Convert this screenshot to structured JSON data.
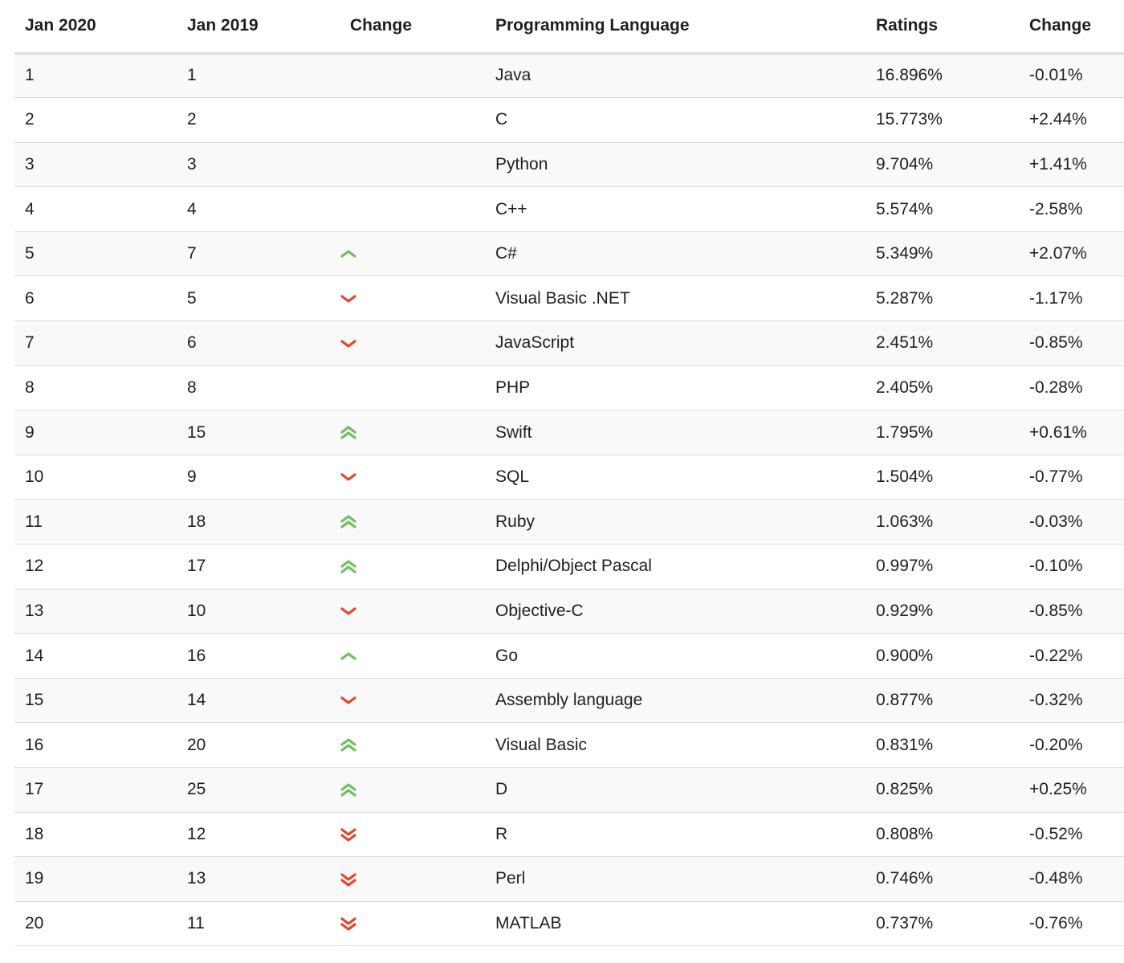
{
  "table": {
    "headers": [
      "Jan 2020",
      "Jan 2019",
      "Change",
      "Programming Language",
      "Ratings",
      "Change"
    ],
    "rows": [
      {
        "rank_2020": "1",
        "rank_2019": "1",
        "trend": "none",
        "language": "Java",
        "rating": "16.896%",
        "change": "-0.01%"
      },
      {
        "rank_2020": "2",
        "rank_2019": "2",
        "trend": "none",
        "language": "C",
        "rating": "15.773%",
        "change": "+2.44%"
      },
      {
        "rank_2020": "3",
        "rank_2019": "3",
        "trend": "none",
        "language": "Python",
        "rating": "9.704%",
        "change": "+1.41%"
      },
      {
        "rank_2020": "4",
        "rank_2019": "4",
        "trend": "none",
        "language": "C++",
        "rating": "5.574%",
        "change": "-2.58%"
      },
      {
        "rank_2020": "5",
        "rank_2019": "7",
        "trend": "up",
        "language": "C#",
        "rating": "5.349%",
        "change": "+2.07%"
      },
      {
        "rank_2020": "6",
        "rank_2019": "5",
        "trend": "down",
        "language": "Visual Basic .NET",
        "rating": "5.287%",
        "change": "-1.17%"
      },
      {
        "rank_2020": "7",
        "rank_2019": "6",
        "trend": "down",
        "language": "JavaScript",
        "rating": "2.451%",
        "change": "-0.85%"
      },
      {
        "rank_2020": "8",
        "rank_2019": "8",
        "trend": "none",
        "language": "PHP",
        "rating": "2.405%",
        "change": "-0.28%"
      },
      {
        "rank_2020": "9",
        "rank_2019": "15",
        "trend": "up2",
        "language": "Swift",
        "rating": "1.795%",
        "change": "+0.61%"
      },
      {
        "rank_2020": "10",
        "rank_2019": "9",
        "trend": "down",
        "language": "SQL",
        "rating": "1.504%",
        "change": "-0.77%"
      },
      {
        "rank_2020": "11",
        "rank_2019": "18",
        "trend": "up2",
        "language": "Ruby",
        "rating": "1.063%",
        "change": "-0.03%"
      },
      {
        "rank_2020": "12",
        "rank_2019": "17",
        "trend": "up2",
        "language": "Delphi/Object Pascal",
        "rating": "0.997%",
        "change": "-0.10%"
      },
      {
        "rank_2020": "13",
        "rank_2019": "10",
        "trend": "down",
        "language": "Objective-C",
        "rating": "0.929%",
        "change": "-0.85%"
      },
      {
        "rank_2020": "14",
        "rank_2019": "16",
        "trend": "up",
        "language": "Go",
        "rating": "0.900%",
        "change": "-0.22%"
      },
      {
        "rank_2020": "15",
        "rank_2019": "14",
        "trend": "down",
        "language": "Assembly language",
        "rating": "0.877%",
        "change": "-0.32%"
      },
      {
        "rank_2020": "16",
        "rank_2019": "20",
        "trend": "up2",
        "language": "Visual Basic",
        "rating": "0.831%",
        "change": "-0.20%"
      },
      {
        "rank_2020": "17",
        "rank_2019": "25",
        "trend": "up2",
        "language": "D",
        "rating": "0.825%",
        "change": "+0.25%"
      },
      {
        "rank_2020": "18",
        "rank_2019": "12",
        "trend": "down2",
        "language": "R",
        "rating": "0.808%",
        "change": "-0.52%"
      },
      {
        "rank_2020": "19",
        "rank_2019": "13",
        "trend": "down2",
        "language": "Perl",
        "rating": "0.746%",
        "change": "-0.48%"
      },
      {
        "rank_2020": "20",
        "rank_2019": "11",
        "trend": "down2",
        "language": "MATLAB",
        "rating": "0.737%",
        "change": "-0.76%"
      }
    ]
  },
  "icons": {
    "up": "chevron-up-icon",
    "up2": "double-chevron-up-icon",
    "down": "chevron-down-icon",
    "down2": "double-chevron-down-icon"
  },
  "colors": {
    "up": "#6fbf5f",
    "down": "#e2452c",
    "header_rule": "#dddddd",
    "row_rule": "#dddddd",
    "stripe": "#f9f9f9"
  }
}
